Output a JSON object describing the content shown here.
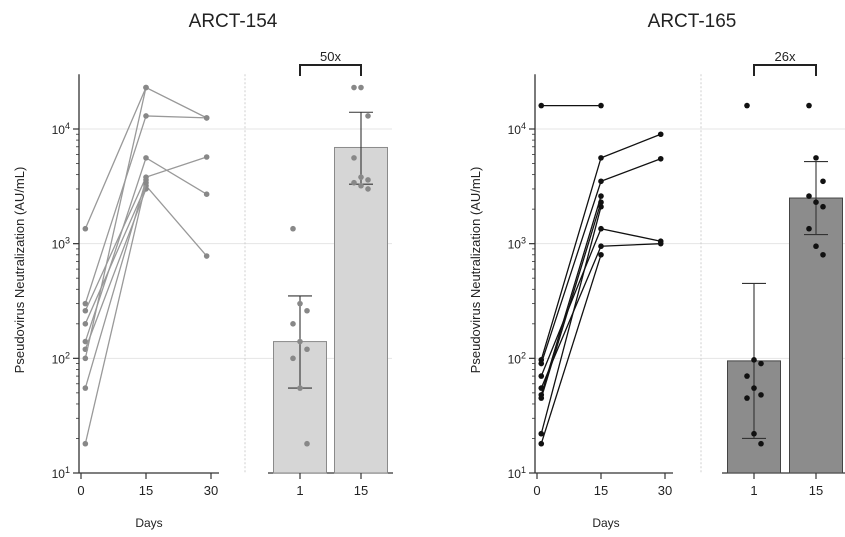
{
  "chart_data": [
    {
      "type": "line+bar",
      "title": "ARCT-154",
      "ylabel": "Pseudovirus Neutralization (AU/mL)",
      "xlabel": "Days",
      "yscale": "log",
      "ylim": [
        10,
        30000
      ],
      "y_ticks": [
        {
          "value": 10,
          "base": "10",
          "exp": "1"
        },
        {
          "value": 100,
          "base": "10",
          "exp": "2"
        },
        {
          "value": 1000,
          "base": "10",
          "exp": "3"
        },
        {
          "value": 10000,
          "base": "10",
          "exp": "4"
        }
      ],
      "grid": true,
      "colors": {
        "line": "#999999",
        "point": "#888888",
        "bar_fill": "#d6d6d6",
        "bar_stroke": "#8a8a8a"
      },
      "time_axis": {
        "ticks": [
          "0",
          "15",
          "30"
        ]
      },
      "subjects": [
        {
          "x": [
            1,
            15,
            29
          ],
          "y": [
            1350,
            23000,
            12500
          ]
        },
        {
          "x": [
            1,
            15,
            29
          ],
          "y": [
            300,
            13000,
            12500
          ]
        },
        {
          "x": [
            1,
            15,
            29
          ],
          "y": [
            260,
            3800,
            5700
          ]
        },
        {
          "x": [
            1,
            15,
            29
          ],
          "y": [
            200,
            3200,
            780
          ]
        },
        {
          "x": [
            1,
            15,
            29
          ],
          "y": [
            140,
            5600,
            2700
          ]
        },
        {
          "x": [
            1,
            15
          ],
          "y": [
            120,
            3000
          ]
        },
        {
          "x": [
            1,
            15
          ],
          "y": [
            100,
            23000
          ]
        },
        {
          "x": [
            1,
            15
          ],
          "y": [
            55,
            3600
          ]
        },
        {
          "x": [
            1,
            15
          ],
          "y": [
            18,
            3400
          ]
        }
      ],
      "bars": {
        "categories": [
          "1",
          "15"
        ],
        "values": [
          140,
          6900
        ],
        "error_low": [
          55,
          3300
        ],
        "error_high": [
          350,
          14000
        ],
        "points": [
          [
            1350,
            300,
            260,
            200,
            140,
            120,
            100,
            55,
            18
          ],
          [
            23000,
            23000,
            13000,
            5600,
            3800,
            3600,
            3400,
            3200,
            3000
          ]
        ]
      },
      "fold_change": "50x"
    },
    {
      "type": "line+bar",
      "title": "ARCT-165",
      "ylabel": "Pseudovirus Neutralization (AU/mL)",
      "xlabel": "Days",
      "yscale": "log",
      "ylim": [
        10,
        30000
      ],
      "y_ticks": [
        {
          "value": 10,
          "base": "10",
          "exp": "1"
        },
        {
          "value": 100,
          "base": "10",
          "exp": "2"
        },
        {
          "value": 1000,
          "base": "10",
          "exp": "3"
        },
        {
          "value": 10000,
          "base": "10",
          "exp": "4"
        }
      ],
      "grid": true,
      "colors": {
        "line": "#111111",
        "point": "#111111",
        "bar_fill": "#8c8c8c",
        "bar_stroke": "#444444"
      },
      "time_axis": {
        "ticks": [
          "0",
          "15",
          "30"
        ]
      },
      "subjects": [
        {
          "x": [
            1,
            15
          ],
          "y": [
            16000,
            16000
          ]
        },
        {
          "x": [
            1,
            15,
            29
          ],
          "y": [
            97,
            5600,
            9000
          ]
        },
        {
          "x": [
            1,
            15,
            29
          ],
          "y": [
            90,
            3500,
            5500
          ]
        },
        {
          "x": [
            1,
            15,
            29
          ],
          "y": [
            70,
            1350,
            1050
          ]
        },
        {
          "x": [
            1,
            15,
            29
          ],
          "y": [
            55,
            950,
            1000
          ]
        },
        {
          "x": [
            1,
            15
          ],
          "y": [
            48,
            2600
          ]
        },
        {
          "x": [
            1,
            15
          ],
          "y": [
            45,
            2300
          ]
        },
        {
          "x": [
            1,
            15
          ],
          "y": [
            22,
            2100
          ]
        },
        {
          "x": [
            1,
            15
          ],
          "y": [
            18,
            800
          ]
        }
      ],
      "bars": {
        "categories": [
          "1",
          "15"
        ],
        "values": [
          95,
          2500
        ],
        "error_low": [
          20,
          1200
        ],
        "error_high": [
          450,
          5200
        ],
        "points": [
          [
            16000,
            97,
            90,
            70,
            55,
            48,
            45,
            22,
            18
          ],
          [
            16000,
            5600,
            3500,
            2600,
            2300,
            2100,
            1350,
            950,
            800
          ]
        ]
      },
      "fold_change": "26x"
    }
  ]
}
